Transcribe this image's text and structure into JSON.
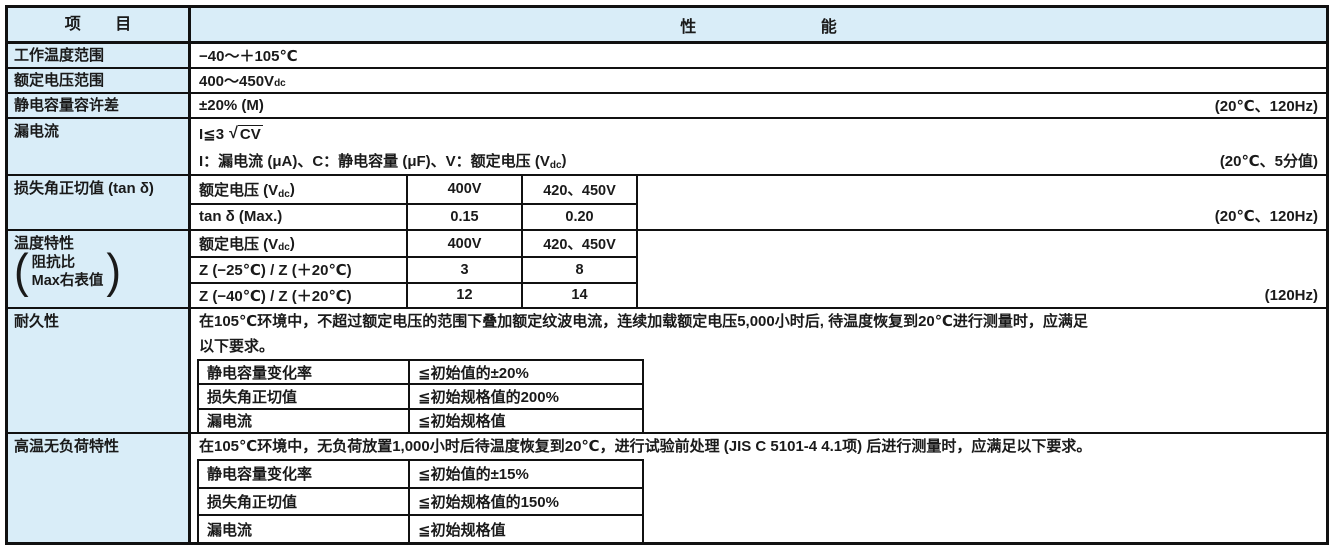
{
  "colors": {
    "header_bg": "#d9edf8",
    "border": "#111111",
    "text": "#1a1a1a"
  },
  "header": {
    "item": "项 目",
    "performance": "性 能"
  },
  "sections": {
    "temp_range": {
      "label": "工作温度范围",
      "value": "−40〜＋105℃"
    },
    "voltage_range": {
      "label": "额定电压范围",
      "value_main": "400〜450V",
      "value_sub": "dc"
    },
    "cap_tolerance": {
      "label": "静电容量容许差",
      "value": "±20% (M)",
      "note": "(20℃、120Hz)"
    },
    "leakage": {
      "label": "漏电流",
      "formula_prefix": "I≦3",
      "radical": "√",
      "radicand": "CV",
      "legend_main": "I：漏电流 (μA)、C：静电容量 (μF)、V：额定电压 (V",
      "legend_sub": "dc",
      "legend_close": ")",
      "note": "(20℃、5分值)"
    },
    "tan_delta": {
      "label": "损失角正切值 (tan δ)",
      "note": "(20℃、120Hz)",
      "table": {
        "rated_main": "额定电压 (V",
        "rated_sub": "dc",
        "rated_close": ")",
        "v400": "400V",
        "v420": "420、450V",
        "tan_label": "tan δ (Max.)",
        "tan_400": "0.15",
        "tan_420": "0.20"
      }
    },
    "temp_char": {
      "label": "温度特性",
      "bracket_open": "(",
      "bracket_close": ")",
      "bracket_line1": "阻抗比",
      "bracket_line2": "Max右表值",
      "note": "(120Hz)",
      "table": {
        "rated_main": "额定电压 (V",
        "rated_sub": "dc",
        "rated_close": ")",
        "v400": "400V",
        "v420": "420、450V",
        "z25_label": "Z (−25℃) / Z (＋20℃)",
        "z25_400": "3",
        "z25_420": "8",
        "z40_label": "Z (−40℃) / Z (＋20℃)",
        "z40_400": "12",
        "z40_420": "14"
      }
    },
    "endurance": {
      "label": "耐久性",
      "desc_line1": "在105℃环境中，不超过额定电压的范围下叠加额定纹波电流，连续加载额定电压5,000小时后, 待温度恢复到20℃进行测量时，应满足",
      "desc_line2": "以下要求。",
      "criteria": [
        {
          "item": "静电容量变化率",
          "limit": "≦初始值的±20%"
        },
        {
          "item": "损失角正切值",
          "limit": "≦初始规格值的200%"
        },
        {
          "item": "漏电流",
          "limit": "≦初始规格值"
        }
      ]
    },
    "shelf_life": {
      "label": "高温无负荷特性",
      "desc": "在105℃环境中，无负荷放置1,000小时后待温度恢复到20℃，进行试验前处理 (JIS C 5101-4 4.1项) 后进行测量时，应满足以下要求。",
      "criteria": [
        {
          "item": "静电容量变化率",
          "limit": "≦初始值的±15%"
        },
        {
          "item": "损失角正切值",
          "limit": "≦初始规格值的150%"
        },
        {
          "item": "漏电流",
          "limit": "≦初始规格值"
        }
      ]
    }
  }
}
